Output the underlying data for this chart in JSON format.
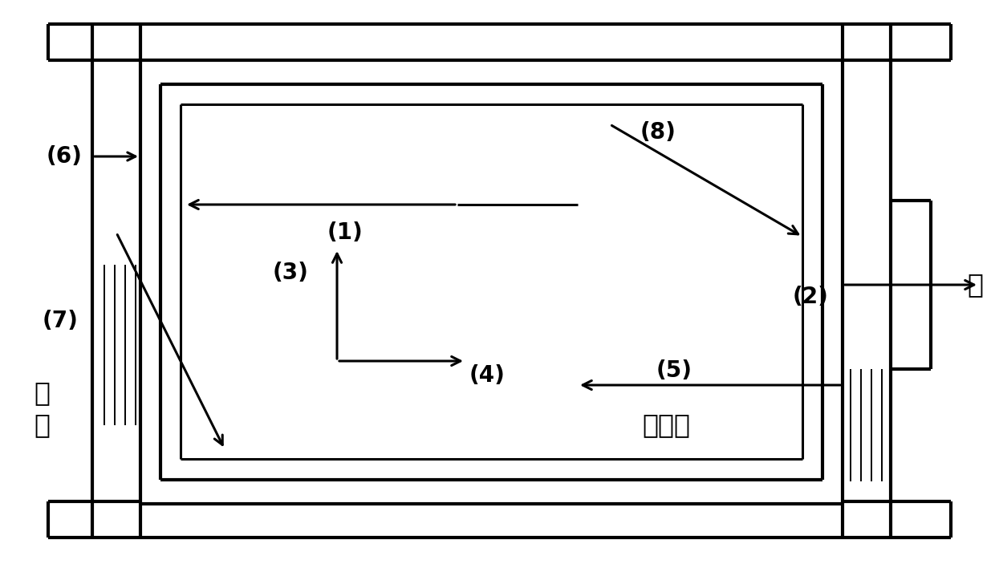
{
  "fig_width": 12.4,
  "fig_height": 7.03,
  "bg_color": "#ffffff",
  "lw_thick": 3.0,
  "lw_medium": 2.2,
  "lw_thin": 1.4,
  "labels": {
    "qiang_ti": "墙体",
    "chuang": "窗",
    "san_re_qi": "散热器",
    "label_1": "(1)",
    "label_2": "(2)",
    "label_3": "(3)",
    "label_4": "(4)",
    "label_5": "(5)",
    "label_6": "(6)",
    "label_7": "(7)",
    "label_8": "(8)"
  }
}
